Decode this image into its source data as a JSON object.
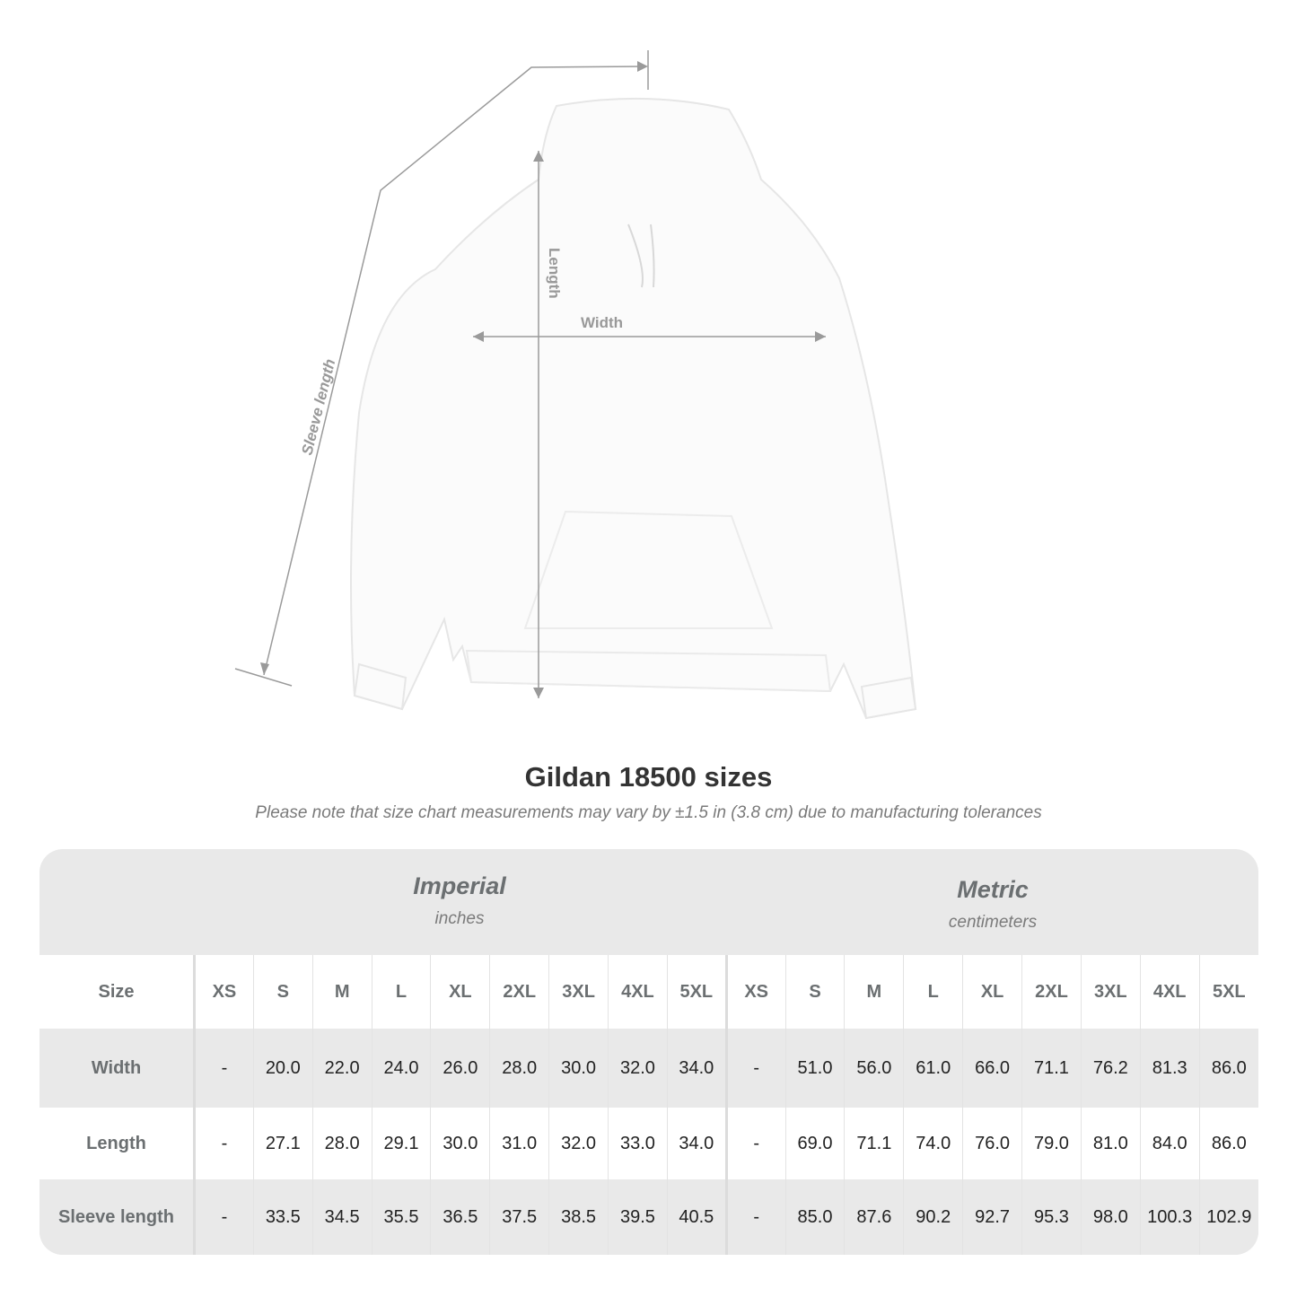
{
  "diagram": {
    "labels": {
      "sleeve": "Sleeve length",
      "length": "Length",
      "width": "Width"
    },
    "garment_color": "#fbfbfb",
    "line_color": "#9a9a9a"
  },
  "title": "Gildan 18500 sizes",
  "subtitle": "Please note that size chart measurements may vary by ±1.5 in (3.8 cm) due to manufacturing tolerances",
  "table": {
    "imperial": {
      "label": "Imperial",
      "unit": "inches"
    },
    "metric": {
      "label": "Metric",
      "unit": "centimeters"
    },
    "size_label": "Size",
    "sizes": [
      "XS",
      "S",
      "M",
      "L",
      "XL",
      "2XL",
      "3XL",
      "4XL",
      "5XL"
    ],
    "rows": [
      {
        "label": "Width",
        "imperial": [
          "-",
          "20.0",
          "22.0",
          "24.0",
          "26.0",
          "28.0",
          "30.0",
          "32.0",
          "34.0"
        ],
        "metric": [
          "-",
          "51.0",
          "56.0",
          "61.0",
          "66.0",
          "71.1",
          "76.2",
          "81.3",
          "86.0"
        ]
      },
      {
        "label": "Length",
        "imperial": [
          "-",
          "27.1",
          "28.0",
          "29.1",
          "30.0",
          "31.0",
          "32.0",
          "33.0",
          "34.0"
        ],
        "metric": [
          "-",
          "69.0",
          "71.1",
          "74.0",
          "76.0",
          "79.0",
          "81.0",
          "84.0",
          "86.0"
        ]
      },
      {
        "label": "Sleeve length",
        "imperial": [
          "-",
          "33.5",
          "34.5",
          "35.5",
          "36.5",
          "37.5",
          "38.5",
          "39.5",
          "40.5"
        ],
        "metric": [
          "-",
          "85.0",
          "87.6",
          "90.2",
          "92.7",
          "95.3",
          "98.0",
          "100.3",
          "102.9"
        ]
      }
    ]
  }
}
